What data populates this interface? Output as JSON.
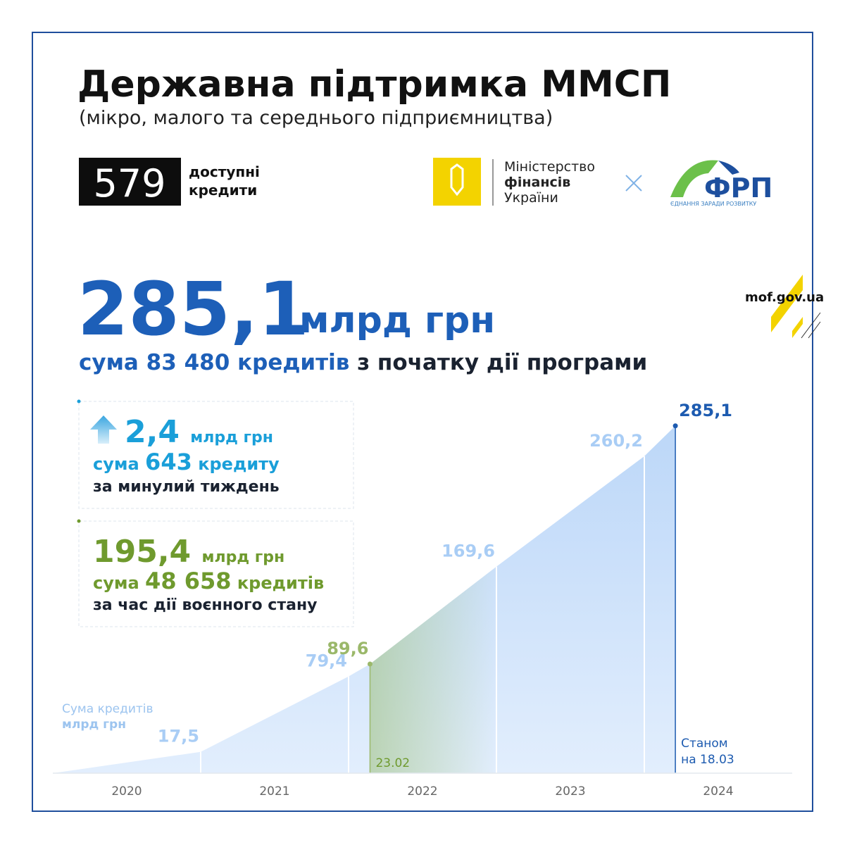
{
  "header": {
    "title": "Державна підтримка ММСП",
    "subtitle": "(мікро, малого та середнього підприємництва)"
  },
  "logos": {
    "program_number": "579",
    "program_name": [
      "доступні",
      "кредити"
    ],
    "ministry": [
      "Міністерство",
      "фінансів",
      "України"
    ],
    "frp": "ФРП",
    "frp_slogan": "ЄДНАННЯ ЗАРАДИ РОЗВИТКУ",
    "site": "mof.gov.ua"
  },
  "headline": {
    "amount": "285,1",
    "unit": "млрд грн",
    "prefix": "сума",
    "count": "83 480",
    "count_word": "кредитів",
    "suffix": "з початку дії програми"
  },
  "week": {
    "amount": "2,4",
    "unit": "млрд грн",
    "prefix": "сума",
    "count": "643",
    "count_word": "кредиту",
    "note": "за минулий тиждень"
  },
  "war": {
    "amount": "195,4",
    "unit": "млрд грн",
    "prefix": "сума",
    "count": "48 658",
    "count_word": "кредитів",
    "note": "за час дії воєнного стану"
  },
  "chart_data": {
    "type": "area",
    "y_label": [
      "Сума кредитів",
      "млрд грн"
    ],
    "x": [
      2020,
      2021,
      2022,
      2022.145,
      2023,
      2024,
      2024.21
    ],
    "values": [
      0,
      17.5,
      79.4,
      89.6,
      169.6,
      260.2,
      285.1
    ],
    "value_labels": [
      null,
      "17,5",
      "79,4",
      "89,6",
      "169,6",
      "260,2",
      "285,1"
    ],
    "value_label_colors": [
      null,
      "#a9cdf5",
      "#a9cdf5",
      "#9bb86a",
      "#a9cdf5",
      "#a9cdf5",
      "#1d5bb0"
    ],
    "color": "#c4dcf8",
    "xlim": [
      2020,
      2025
    ],
    "ylim": [
      0,
      300
    ],
    "xticks": [
      {
        "value": 2020.5,
        "label": "2020"
      },
      {
        "value": 2021.5,
        "label": "2021"
      },
      {
        "value": 2022.5,
        "label": "2022"
      },
      {
        "value": 2023.5,
        "label": "2023"
      },
      {
        "value": 2024.5,
        "label": "2024"
      }
    ],
    "annotations": [
      "23.02",
      "Станом",
      "на 18.03"
    ]
  }
}
